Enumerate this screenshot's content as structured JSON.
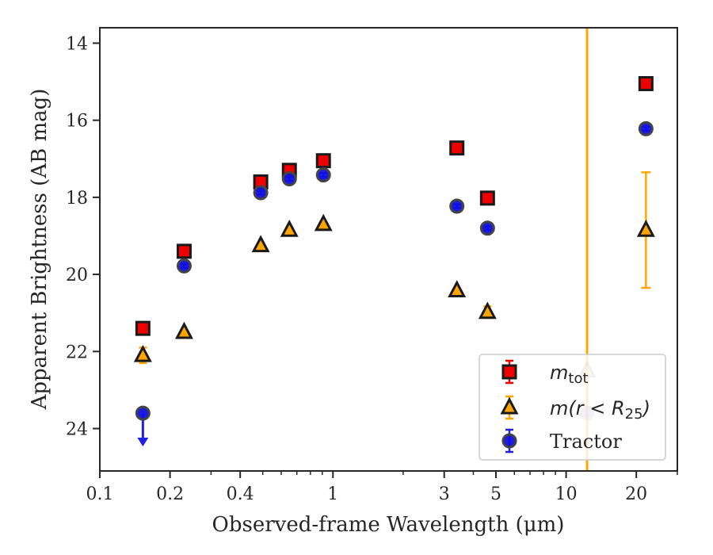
{
  "chart_data": {
    "type": "scatter",
    "xlabel": "Observed-frame Wavelength (μm)",
    "ylabel": "Apparent Brightness (AB mag)",
    "xscale": "log",
    "xlim": [
      0.1,
      30
    ],
    "ylim": [
      25.1,
      13.6
    ],
    "y_inverted": true,
    "x_ticks": [
      {
        "value": 0.1,
        "label": "0.1"
      },
      {
        "value": 0.2,
        "label": "0.2"
      },
      {
        "value": 0.4,
        "label": "0.4"
      },
      {
        "value": 1,
        "label": "1"
      },
      {
        "value": 3,
        "label": "3"
      },
      {
        "value": 5,
        "label": "5"
      },
      {
        "value": 10,
        "label": "10"
      },
      {
        "value": 20,
        "label": "20"
      }
    ],
    "y_ticks": [
      {
        "value": 14,
        "label": "14"
      },
      {
        "value": 16,
        "label": "16"
      },
      {
        "value": 18,
        "label": "18"
      },
      {
        "value": 20,
        "label": "20"
      },
      {
        "value": 22,
        "label": "22"
      },
      {
        "value": 24,
        "label": "24"
      }
    ],
    "grid": false,
    "legend_position": "bottom-right",
    "series": [
      {
        "key": "mtot",
        "name": "m_tot",
        "legend_main": "m",
        "legend_sub": "tot",
        "marker": "square",
        "color": "#ee0000",
        "edge": "#1a1a1a",
        "points": [
          {
            "x": 0.153,
            "y": 21.4,
            "err": 0.08
          },
          {
            "x": 0.23,
            "y": 19.4,
            "err": 0.08
          },
          {
            "x": 0.49,
            "y": 17.6,
            "err": 0.08
          },
          {
            "x": 0.65,
            "y": 17.3,
            "err": 0.08
          },
          {
            "x": 0.91,
            "y": 17.05,
            "err": 0.08
          },
          {
            "x": 3.4,
            "y": 16.72,
            "err": 0.05
          },
          {
            "x": 4.6,
            "y": 18.02,
            "err": 0.05
          },
          {
            "x": 22,
            "y": 15.05,
            "err": 0.05
          }
        ]
      },
      {
        "key": "mr25",
        "name": "m(r < R25)",
        "legend_main": "m(r < R",
        "legend_sub": "25",
        "legend_tail": ")",
        "marker": "triangle",
        "color": "#ffa500",
        "edge": "#1a1a1a",
        "points": [
          {
            "x": 0.153,
            "y": 22.1,
            "err": 0.2
          },
          {
            "x": 0.23,
            "y": 21.5,
            "err": 0.05
          },
          {
            "x": 0.49,
            "y": 19.25,
            "err": 0.05
          },
          {
            "x": 0.65,
            "y": 18.85,
            "err": 0.05
          },
          {
            "x": 0.91,
            "y": 18.7,
            "err": 0.05
          },
          {
            "x": 3.4,
            "y": 20.42,
            "err": 0.05
          },
          {
            "x": 4.6,
            "y": 20.98,
            "err": 0.15
          },
          {
            "x": 12.3,
            "y": 22.5,
            "err_low": 30,
            "err_high": 30
          },
          {
            "x": 22,
            "y": 18.85,
            "err": 1.5
          }
        ]
      },
      {
        "key": "tractor",
        "name": "Tractor",
        "legend_main": "Tractor",
        "marker": "circle",
        "color": "#1010e0",
        "edge": "#444444",
        "points": [
          {
            "x": 0.153,
            "y": 23.6,
            "upper_limit": true
          },
          {
            "x": 0.23,
            "y": 19.78,
            "err": 0.05
          },
          {
            "x": 0.49,
            "y": 17.88,
            "err": 0.05
          },
          {
            "x": 0.65,
            "y": 17.52,
            "err": 0.05
          },
          {
            "x": 0.91,
            "y": 17.42,
            "err": 0.05
          },
          {
            "x": 3.4,
            "y": 18.23,
            "err": 0.05
          },
          {
            "x": 4.6,
            "y": 18.8,
            "err": 0.05
          },
          {
            "x": 12.3,
            "y": 23.6,
            "err": 0.05
          },
          {
            "x": 22,
            "y": 16.22,
            "err": 0.05
          }
        ]
      }
    ]
  }
}
